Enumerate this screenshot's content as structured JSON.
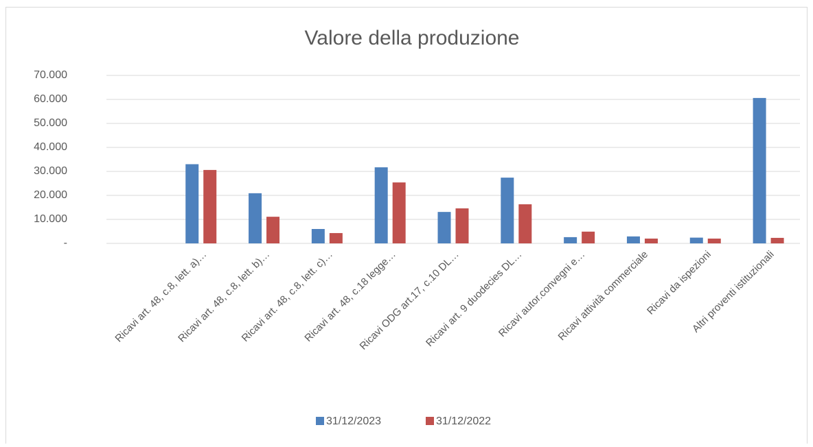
{
  "chart_data": {
    "type": "bar",
    "title": "Valore della produzione",
    "categories": [
      null,
      "Ricavi art. 48, c.8, lett. a)…",
      "Ricavi art. 48, c.8, lett. b)…",
      "Ricavi art. 48, c.8, lett. c)…",
      "Ricavi art. 48, c.18 legge…",
      "Ricavi ODG art.17, c.10 DL…",
      "Ricavi art. 9 duodecies  DL…",
      "Ricavi autor.convegni e…",
      "Ricavi attività commerciale",
      "Ricavi da ispezioni",
      "Altri proventi istituzionali"
    ],
    "series": [
      {
        "name": "31/12/2023",
        "color": "#4e81bd",
        "values": [
          null,
          33000,
          20900,
          6000,
          31700,
          13100,
          27400,
          2600,
          2900,
          2400,
          60600
        ]
      },
      {
        "name": "31/12/2022",
        "color": "#c0504d",
        "values": [
          null,
          30600,
          11100,
          4300,
          25400,
          14600,
          16300,
          4900,
          2000,
          2000,
          2300
        ]
      }
    ],
    "ylim": [
      0,
      70000
    ],
    "yticks": [
      {
        "value": 0,
        "label": "-"
      },
      {
        "value": 10000,
        "label": "10.000"
      },
      {
        "value": 20000,
        "label": "20.000"
      },
      {
        "value": 30000,
        "label": "30.000"
      },
      {
        "value": 40000,
        "label": "40.000"
      },
      {
        "value": 50000,
        "label": "50.000"
      },
      {
        "value": 60000,
        "label": "60.000"
      },
      {
        "value": 70000,
        "label": "70.000"
      }
    ],
    "grid": true,
    "legend": "bottom"
  }
}
